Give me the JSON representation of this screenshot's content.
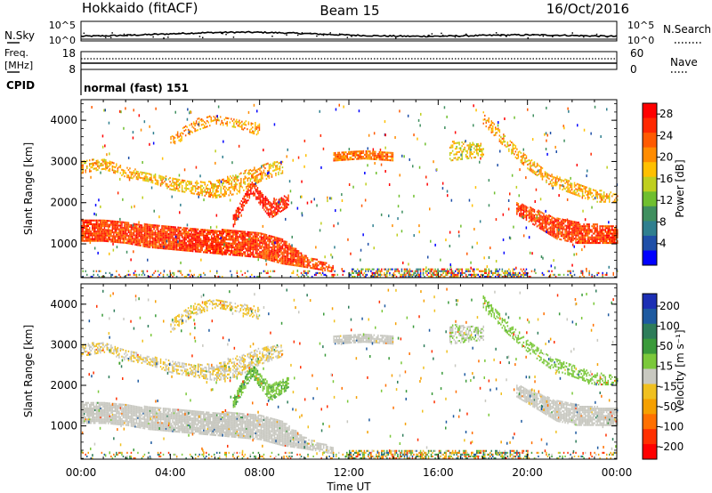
{
  "header": {
    "station": "Hokkaido (fitACF)",
    "beam": "Beam 15",
    "date": "16/Oct/2016"
  },
  "top_panels": {
    "nsky_label": "N.Sky",
    "nsearch_label": "N.Search",
    "nsky_ticks": [
      "10^5",
      "10^0"
    ],
    "nsearch_ticks": [
      "10^5",
      "10^0"
    ],
    "freq_label_1": "Freq.",
    "freq_label_2": "[MHz]",
    "freq_ticks": [
      "18",
      "8"
    ],
    "nave_label": "Nave",
    "nave_ticks": [
      "60",
      "0"
    ],
    "cpid_label": "CPID",
    "cpid_value": "normal (fast) 151"
  },
  "colors": {
    "power_scale": [
      "#0000ff",
      "#1f4fa8",
      "#2f7f8f",
      "#3f8f5f",
      "#6fbf2f",
      "#bfcf1f",
      "#ffc000",
      "#ff8c00",
      "#ff5a00",
      "#ff2800",
      "#ff0000"
    ],
    "velocity_scale": [
      "#1c2fb4",
      "#1e5aa0",
      "#2e7d5a",
      "#3a9a3a",
      "#7bc83a",
      "#c8c8c0",
      "#f0c020",
      "#f5a000",
      "#ff7000",
      "#ff3000",
      "#ff0000"
    ]
  },
  "chart_data": [
    {
      "type": "heatmap",
      "name": "power",
      "xlabel": "",
      "ylabel": "Slant Range [km]",
      "x_ticks": [
        "00:00",
        "04:00",
        "08:00",
        "12:00",
        "16:00",
        "20:00",
        "00:00"
      ],
      "y_ticks": [
        "1000",
        "2000",
        "3000",
        "4000"
      ],
      "xlim_hours": [
        0,
        24
      ],
      "ylim_km": [
        180,
        4500
      ],
      "colorbar_label": "Power [dB]",
      "colorbar_ticks": [
        "4",
        "8",
        "12",
        "16",
        "20",
        "24",
        "28"
      ],
      "colorbar_range": [
        0,
        30
      ]
    },
    {
      "type": "heatmap",
      "name": "velocity",
      "xlabel": "Time UT",
      "ylabel": "Slant Range [km]",
      "x_ticks": [
        "00:00",
        "04:00",
        "08:00",
        "12:00",
        "16:00",
        "20:00",
        "00:00"
      ],
      "y_ticks": [
        "1000",
        "2000",
        "3000",
        "4000"
      ],
      "xlim_hours": [
        0,
        24
      ],
      "ylim_km": [
        180,
        4500
      ],
      "colorbar_label": "Velocity [m s⁻¹]",
      "colorbar_ticks": [
        "200",
        "100",
        "50",
        "15",
        "-15",
        "-50",
        "-100",
        "-200"
      ],
      "colorbar_range": [
        -250,
        250
      ]
    }
  ]
}
